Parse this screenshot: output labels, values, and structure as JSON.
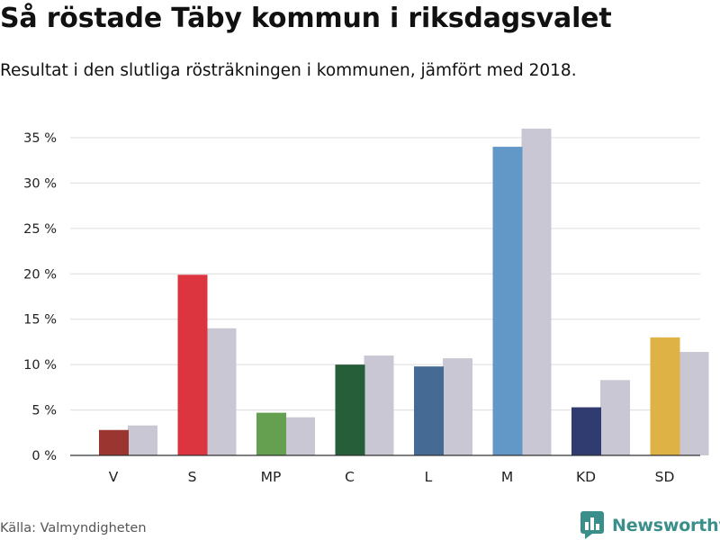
{
  "title": "Så röstade Täby kommun i riksdagsvalet",
  "subtitle": "Resultat i den slutliga rösträkningen i kommunen, jämfört med 2018.",
  "source": "Källa: Valmyndigheten",
  "brand": {
    "name": "Newsworthy",
    "icon": "newsworthy-bar-chart-logo-icon",
    "color": "#3a8f8a"
  },
  "chart_data": {
    "type": "bar",
    "categories": [
      "V",
      "S",
      "MP",
      "C",
      "L",
      "M",
      "KD",
      "SD"
    ],
    "series": [
      {
        "values": [
          2.8,
          19.9,
          4.7,
          10.0,
          9.8,
          34.0,
          5.3,
          13.0
        ],
        "colors": [
          "#9a3530",
          "#dc3540",
          "#64a050",
          "#255e38",
          "#456a93",
          "#6298c8",
          "#303c70",
          "#deb244"
        ]
      },
      {
        "values": [
          3.3,
          14.0,
          4.2,
          11.0,
          10.7,
          36.0,
          8.3,
          11.4
        ],
        "color": "#c9c7d3"
      }
    ],
    "yticks": [
      "0 %",
      "5 %",
      "10 %",
      "15 %",
      "20 %",
      "25 %",
      "30 %",
      "35 %"
    ],
    "ylim": [
      0,
      35
    ],
    "grid": true
  }
}
